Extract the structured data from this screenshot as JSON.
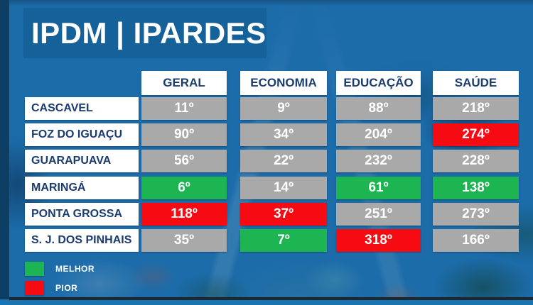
{
  "title": "IPDM | IPARDES",
  "chart_data": {
    "type": "table",
    "title": "IPDM | IPARDES",
    "columns": [
      "GERAL",
      "ECONOMIA",
      "EDUCAÇÃO",
      "SAÚDE"
    ],
    "rows": [
      {
        "label": "CASCAVEL",
        "values": [
          {
            "text": "11º",
            "state": "normal"
          },
          {
            "text": "9º",
            "state": "normal"
          },
          {
            "text": "88º",
            "state": "normal"
          },
          {
            "text": "218º",
            "state": "normal"
          }
        ]
      },
      {
        "label": "FOZ DO IGUAÇU",
        "values": [
          {
            "text": "90º",
            "state": "normal"
          },
          {
            "text": "34º",
            "state": "normal"
          },
          {
            "text": "204º",
            "state": "normal"
          },
          {
            "text": "274º",
            "state": "worst"
          }
        ]
      },
      {
        "label": "GUARAPUAVA",
        "values": [
          {
            "text": "56º",
            "state": "normal"
          },
          {
            "text": "22º",
            "state": "normal"
          },
          {
            "text": "232º",
            "state": "normal"
          },
          {
            "text": "228º",
            "state": "normal"
          }
        ]
      },
      {
        "label": "MARINGÁ",
        "values": [
          {
            "text": "6º",
            "state": "best"
          },
          {
            "text": "14º",
            "state": "normal"
          },
          {
            "text": "61º",
            "state": "best"
          },
          {
            "text": "138º",
            "state": "best"
          }
        ]
      },
      {
        "label": "PONTA GROSSA",
        "values": [
          {
            "text": "118º",
            "state": "worst"
          },
          {
            "text": "37º",
            "state": "worst"
          },
          {
            "text": "251º",
            "state": "normal"
          },
          {
            "text": "273º",
            "state": "normal"
          }
        ]
      },
      {
        "label": "S. J. DOS PINHAIS",
        "values": [
          {
            "text": "35º",
            "state": "normal"
          },
          {
            "text": "7º",
            "state": "best"
          },
          {
            "text": "318º",
            "state": "worst"
          },
          {
            "text": "166º",
            "state": "normal"
          }
        ]
      }
    ],
    "legend": [
      {
        "label": "MELHOR",
        "meaning": "best",
        "color": "#1cb551"
      },
      {
        "label": "PIOR",
        "meaning": "worst",
        "color": "#f60b13"
      }
    ]
  },
  "colors": {
    "background_blue": "#1c6caa",
    "title_bar_blue": "#15619a",
    "header_text_navy": "#1b3c6f",
    "cell_normal_gray": "#a9a9a9",
    "cell_best_green": "#1cb551",
    "cell_worst_red": "#f60b13",
    "left_strip_navy": "#0d3e64",
    "bottom_strip_blue": "#1774b0"
  }
}
